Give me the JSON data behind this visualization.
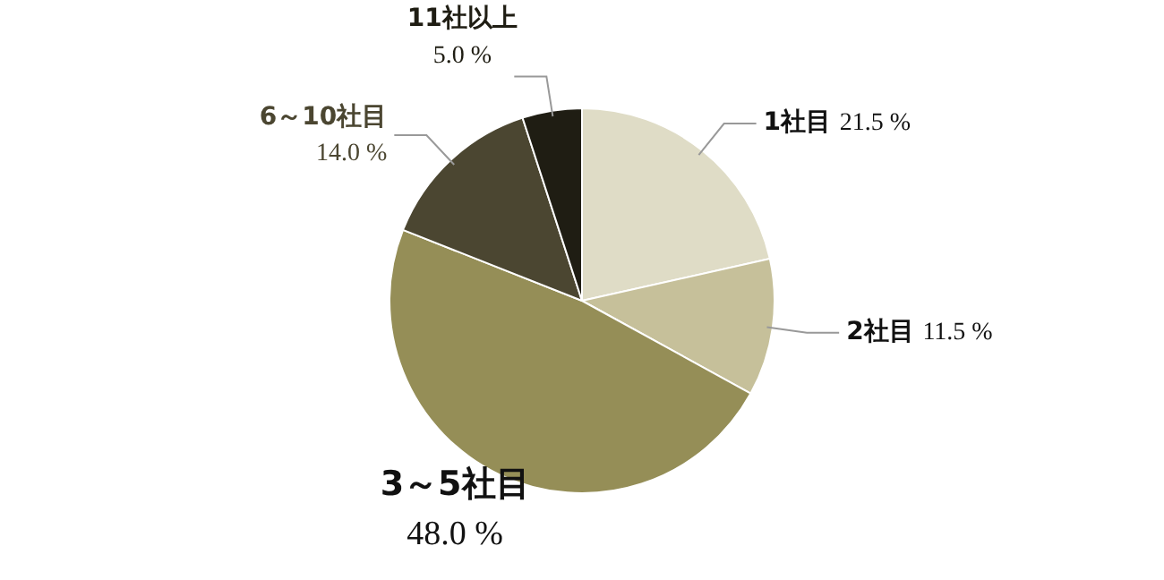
{
  "chart_data": {
    "type": "pie",
    "categories": [
      "1社目",
      "2社目",
      "3～5社目",
      "6～10社目",
      "11社以上"
    ],
    "values": [
      21.5,
      11.5,
      48.0,
      14.0,
      5.0
    ],
    "value_labels": [
      "21.5 %",
      "11.5 %",
      "48.0 %",
      "14.0 %",
      "5.0 %"
    ],
    "colors": [
      "#dfdcc6",
      "#c6c09a",
      "#958e57",
      "#4b4631",
      "#1f1d13"
    ],
    "legend": false
  }
}
